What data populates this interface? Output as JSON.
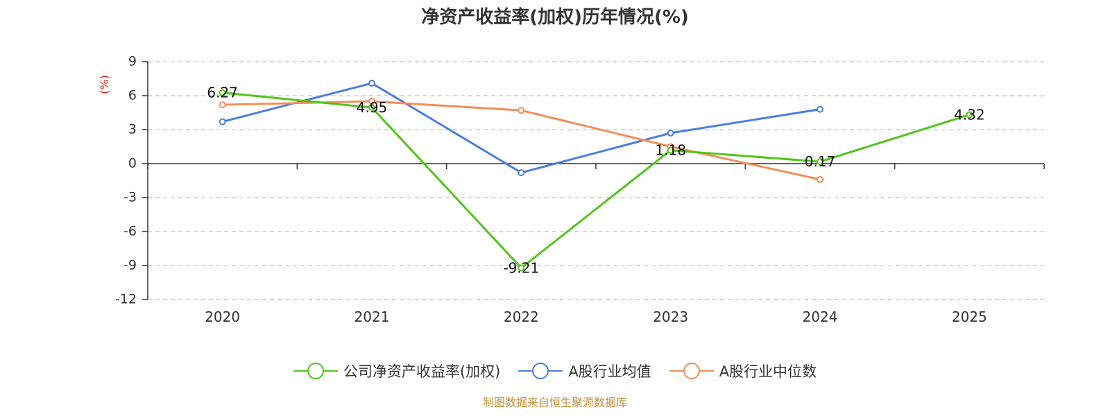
{
  "title": "净资产收益率(加权)历年情况(%)",
  "source": "制图数据来自恒生聚源数据库",
  "chart_data": {
    "type": "line",
    "title": "净资产收益率(加权)历年情况(%)",
    "ylabel": "(%)",
    "xlabel": "",
    "categories": [
      "2020",
      "2021",
      "2022",
      "2023",
      "2024",
      "2025"
    ],
    "ylim": [
      -12,
      9
    ],
    "yticks": [
      9,
      6,
      3,
      0,
      -3,
      -6,
      -9,
      -12
    ],
    "grid": true,
    "legend_position": "bottom",
    "series": [
      {
        "name": "公司净资产收益率(加权)",
        "color": "#52c41a",
        "values": [
          6.27,
          4.95,
          -9.21,
          1.18,
          0.17,
          4.32
        ],
        "labels": [
          "6.27",
          "4.95",
          "-9.21",
          "1.18",
          "0.17",
          "4.32"
        ]
      },
      {
        "name": "A股行业均值",
        "color": "#4a7ee0",
        "values": [
          3.7,
          7.1,
          -0.8,
          2.7,
          4.8,
          null
        ]
      },
      {
        "name": "A股行业中位数",
        "color": "#f58d5a",
        "values": [
          5.2,
          5.5,
          4.7,
          1.5,
          -1.4,
          null
        ]
      }
    ]
  }
}
